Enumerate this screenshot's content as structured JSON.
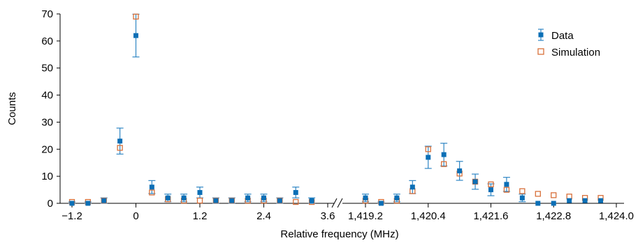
{
  "chart_data": {
    "type": "scatter",
    "xlabel": "Relative frequency (MHz)",
    "ylabel": "Counts",
    "ylim": [
      0,
      70
    ],
    "yticks": [
      0,
      10,
      20,
      30,
      40,
      50,
      60,
      70
    ],
    "broken_x_axis": true,
    "segments": [
      {
        "xlim": [
          -1.5,
          3.6
        ],
        "ticks": [
          "-1.2",
          "0",
          "1.2",
          "2.4",
          "3.6"
        ],
        "tick_values": [
          -1.2,
          0,
          1.2,
          2.4,
          3.6
        ]
      },
      {
        "xlim": [
          1418.9,
          1424.0
        ],
        "ticks": [
          "1,419.2",
          "1,420.4",
          "1,421.6",
          "1,422.8",
          "1,424.0"
        ],
        "tick_values": [
          1419.2,
          1420.4,
          1421.6,
          1422.8,
          1424.0
        ]
      }
    ],
    "legend": {
      "position": "top-right",
      "entries": [
        "Data",
        "Simulation"
      ]
    },
    "series": [
      {
        "name": "Data",
        "color": "#0b6fb6",
        "marker": "filled-square",
        "points": [
          {
            "x": -1.2,
            "y": 0,
            "err": 0.5
          },
          {
            "x": -0.9,
            "y": 0,
            "err": 0.5
          },
          {
            "x": -0.6,
            "y": 1,
            "err": 1
          },
          {
            "x": -0.3,
            "y": 23,
            "err": 4.8
          },
          {
            "x": 0.0,
            "y": 62,
            "err": 7.9
          },
          {
            "x": 0.3,
            "y": 6,
            "err": 2.4
          },
          {
            "x": 0.6,
            "y": 2,
            "err": 1.4
          },
          {
            "x": 0.9,
            "y": 2,
            "err": 1.4
          },
          {
            "x": 1.2,
            "y": 4,
            "err": 2
          },
          {
            "x": 1.5,
            "y": 1,
            "err": 1
          },
          {
            "x": 1.8,
            "y": 1,
            "err": 1
          },
          {
            "x": 2.1,
            "y": 2,
            "err": 1.4
          },
          {
            "x": 2.4,
            "y": 2,
            "err": 1.4
          },
          {
            "x": 2.7,
            "y": 1,
            "err": 1
          },
          {
            "x": 3.0,
            "y": 4,
            "err": 2
          },
          {
            "x": 3.3,
            "y": 1,
            "err": 1
          },
          {
            "x": 1419.2,
            "y": 2,
            "err": 1.4
          },
          {
            "x": 1419.5,
            "y": 0,
            "err": 0.5
          },
          {
            "x": 1419.8,
            "y": 2,
            "err": 1.4
          },
          {
            "x": 1420.1,
            "y": 6,
            "err": 2.4
          },
          {
            "x": 1420.4,
            "y": 17,
            "err": 4.1
          },
          {
            "x": 1420.7,
            "y": 18,
            "err": 4.2
          },
          {
            "x": 1421.0,
            "y": 12,
            "err": 3.5
          },
          {
            "x": 1421.3,
            "y": 8,
            "err": 2.8
          },
          {
            "x": 1421.6,
            "y": 5,
            "err": 2.2
          },
          {
            "x": 1421.9,
            "y": 7,
            "err": 2.6
          },
          {
            "x": 1422.2,
            "y": 2,
            "err": 1.4
          },
          {
            "x": 1422.5,
            "y": 0,
            "err": 0
          },
          {
            "x": 1422.8,
            "y": 0,
            "err": 0
          },
          {
            "x": 1423.1,
            "y": 1,
            "err": 0
          },
          {
            "x": 1423.4,
            "y": 1,
            "err": 0
          },
          {
            "x": 1423.7,
            "y": 1,
            "err": 0
          }
        ]
      },
      {
        "name": "Simulation",
        "color": "#d8703a",
        "marker": "open-square",
        "points": [
          {
            "x": -1.2,
            "y": 0.5
          },
          {
            "x": -0.9,
            "y": 0.5
          },
          {
            "x": -0.6,
            "y": 1
          },
          {
            "x": -0.3,
            "y": 20.5
          },
          {
            "x": 0.0,
            "y": 69
          },
          {
            "x": 0.3,
            "y": 4
          },
          {
            "x": 0.6,
            "y": 1.5
          },
          {
            "x": 0.9,
            "y": 1
          },
          {
            "x": 1.2,
            "y": 1
          },
          {
            "x": 1.5,
            "y": 1
          },
          {
            "x": 1.8,
            "y": 1
          },
          {
            "x": 2.1,
            "y": 1
          },
          {
            "x": 2.4,
            "y": 1
          },
          {
            "x": 2.7,
            "y": 1
          },
          {
            "x": 3.0,
            "y": 0.5
          },
          {
            "x": 3.3,
            "y": 0.5
          },
          {
            "x": 1419.2,
            "y": 1
          },
          {
            "x": 1419.5,
            "y": 0.5
          },
          {
            "x": 1419.8,
            "y": 1
          },
          {
            "x": 1420.1,
            "y": 4.5
          },
          {
            "x": 1420.4,
            "y": 20
          },
          {
            "x": 1420.7,
            "y": 14.5
          },
          {
            "x": 1421.0,
            "y": 11
          },
          {
            "x": 1421.3,
            "y": 8
          },
          {
            "x": 1421.6,
            "y": 7
          },
          {
            "x": 1421.9,
            "y": 5
          },
          {
            "x": 1422.2,
            "y": 4.5
          },
          {
            "x": 1422.5,
            "y": 3.5
          },
          {
            "x": 1422.8,
            "y": 3
          },
          {
            "x": 1423.1,
            "y": 2.5
          },
          {
            "x": 1423.4,
            "y": 2
          },
          {
            "x": 1423.7,
            "y": 2
          }
        ]
      }
    ]
  }
}
